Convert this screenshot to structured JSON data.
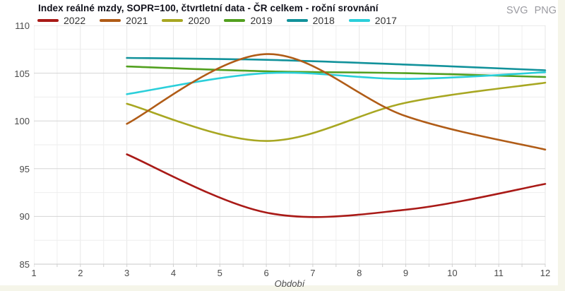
{
  "header": {
    "export": {
      "svg": "SVG",
      "png": "PNG"
    }
  },
  "chart_data": {
    "type": "line",
    "title": "Index reálné mzdy, SOPR=100, čtvrtletní data - ČR celkem - roční srovnání",
    "xlabel": "Období",
    "ylabel": "",
    "x": [
      3,
      6,
      9,
      12
    ],
    "series": [
      {
        "name": "2022",
        "color": "#a91a17",
        "values": [
          96.5,
          90.4,
          90.7,
          93.4
        ]
      },
      {
        "name": "2021",
        "color": "#b05c17",
        "values": [
          99.7,
          107.0,
          100.5,
          97.0
        ]
      },
      {
        "name": "2020",
        "color": "#a8a722",
        "values": [
          101.8,
          97.9,
          101.9,
          104.0
        ]
      },
      {
        "name": "2019",
        "color": "#52a01f",
        "values": [
          105.7,
          105.2,
          105.0,
          104.6
        ]
      },
      {
        "name": "2018",
        "color": "#12929b",
        "values": [
          106.6,
          106.4,
          105.9,
          105.3
        ]
      },
      {
        "name": "2017",
        "color": "#2bcfda",
        "values": [
          102.8,
          105.0,
          104.4,
          105.1
        ]
      }
    ],
    "xlim": [
      1,
      12
    ],
    "ylim": [
      85,
      110
    ],
    "x_ticks": [
      1,
      2,
      3,
      4,
      5,
      6,
      7,
      8,
      9,
      10,
      11,
      12
    ],
    "y_ticks": [
      85,
      90,
      95,
      100,
      105,
      110
    ],
    "x_minor_step": 0.5,
    "y_minor_step": 2.5,
    "grid": true,
    "legend_position": "top",
    "line_shape": "spline"
  }
}
